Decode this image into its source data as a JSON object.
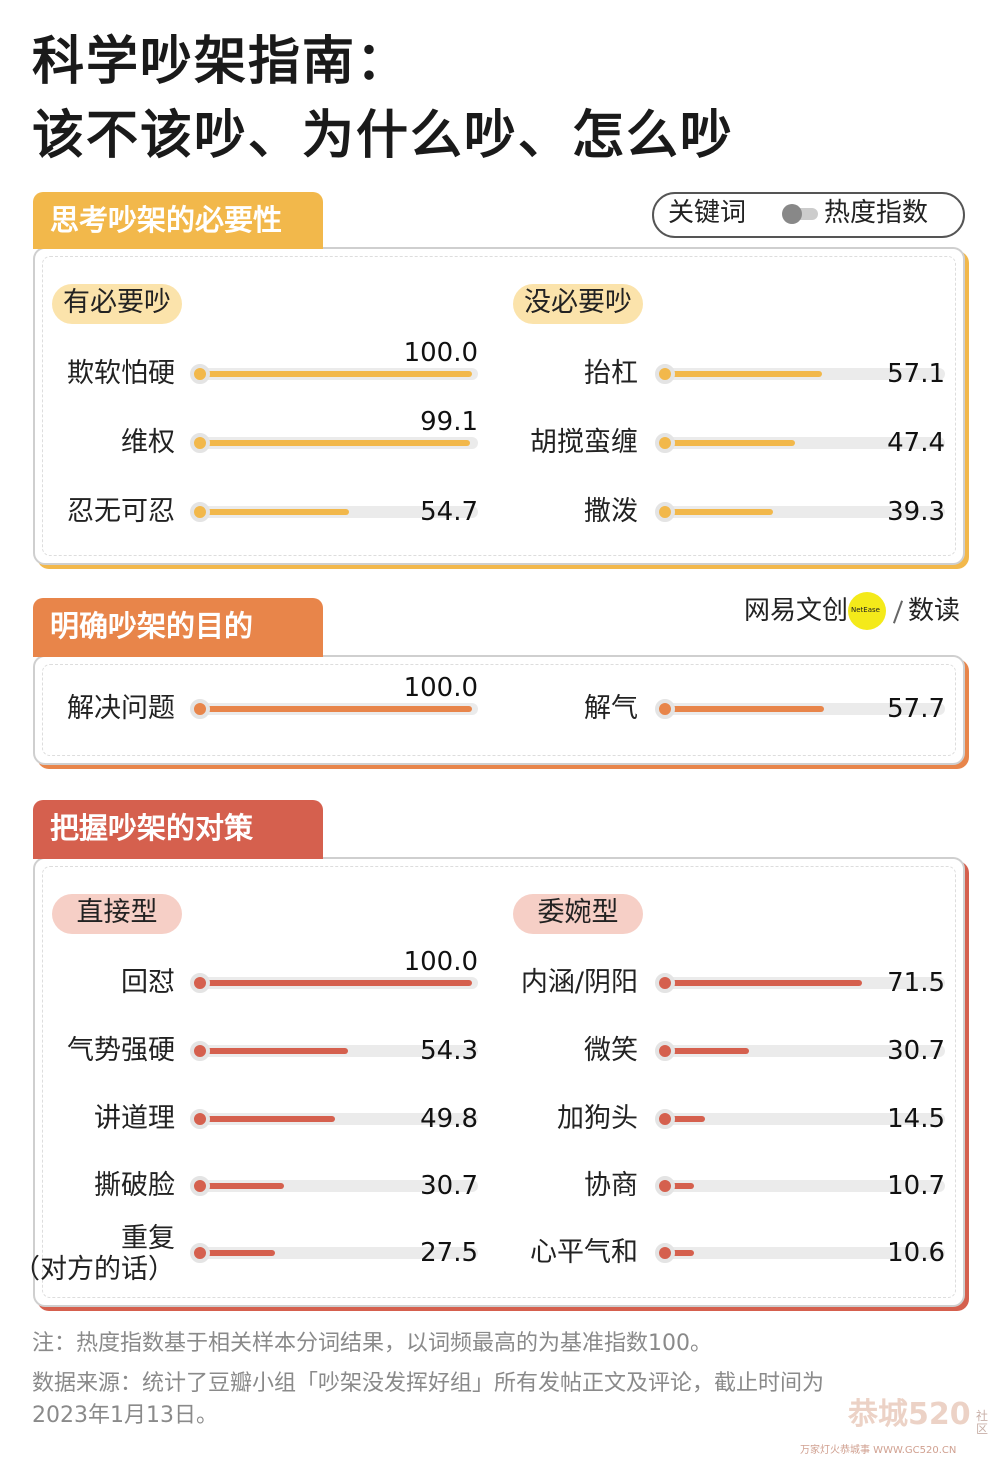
{
  "title": [
    "科学吵架指南：",
    "该不该吵、为什么吵、怎么吵"
  ],
  "legend": {
    "keyword": "关键词",
    "index": "热度指数"
  },
  "logo": {
    "brand": "网易文创",
    "badge": "NetEase",
    "sub": "数读"
  },
  "xlim": [
    0,
    100
  ],
  "sections": [
    {
      "title": "思考吵架的必要性",
      "color": "#f2b84b",
      "pill": "#fbe3ab",
      "groups": [
        {
          "name": "有必要吵",
          "categories": [
            "欺软怕硬",
            "维权",
            "忍无可忍"
          ],
          "values": [
            100.0,
            99.1,
            54.7
          ],
          "value_labels": [
            "100.0",
            "99.1",
            "54.7"
          ]
        },
        {
          "name": "没必要吵",
          "categories": [
            "抬杠",
            "胡搅蛮缠",
            "撒泼"
          ],
          "values": [
            57.1,
            47.4,
            39.3
          ],
          "value_labels": [
            "57.1",
            "47.4",
            "39.3"
          ]
        }
      ]
    },
    {
      "title": "明确吵架的目的",
      "color": "#e8854a",
      "pill": "#f8d4bc",
      "groups": [
        {
          "categories": [
            "解决问题"
          ],
          "values": [
            100.0
          ],
          "value_labels": [
            "100.0"
          ]
        },
        {
          "categories": [
            "解气"
          ],
          "values": [
            57.7
          ],
          "value_labels": [
            "57.7"
          ]
        }
      ]
    },
    {
      "title": "把握吵架的对策",
      "color": "#d5604e",
      "pill": "#f6cfc6",
      "groups": [
        {
          "name": "直接型",
          "categories": [
            "回怼",
            "气势强硬",
            "讲道理",
            "撕破脸",
            "重复\n（对方的话）"
          ],
          "values": [
            100.0,
            54.3,
            49.8,
            30.7,
            27.5
          ],
          "value_labels": [
            "100.0",
            "54.3",
            "49.8",
            "30.7",
            "27.5"
          ]
        },
        {
          "name": "委婉型",
          "categories": [
            "内涵/阴阳",
            "微笑",
            "加狗头",
            "协商",
            "心平气和"
          ],
          "values": [
            71.5,
            30.7,
            14.5,
            10.7,
            10.6
          ],
          "value_labels": [
            "71.5",
            "30.7",
            "14.5",
            "10.7",
            "10.6"
          ]
        }
      ]
    }
  ],
  "notes": [
    "注：热度指数基于相关样本分词结果，以词频最高的为基准指数100。",
    "数据来源：统计了豆瓣小组「吵架没发挥好组」所有发帖正文及评论，截止时间为",
    "2023年1月13日。"
  ],
  "watermark": [
    "恭城520",
    "社区",
    "万家灯火恭城事 WWW.GC520.CN"
  ]
}
